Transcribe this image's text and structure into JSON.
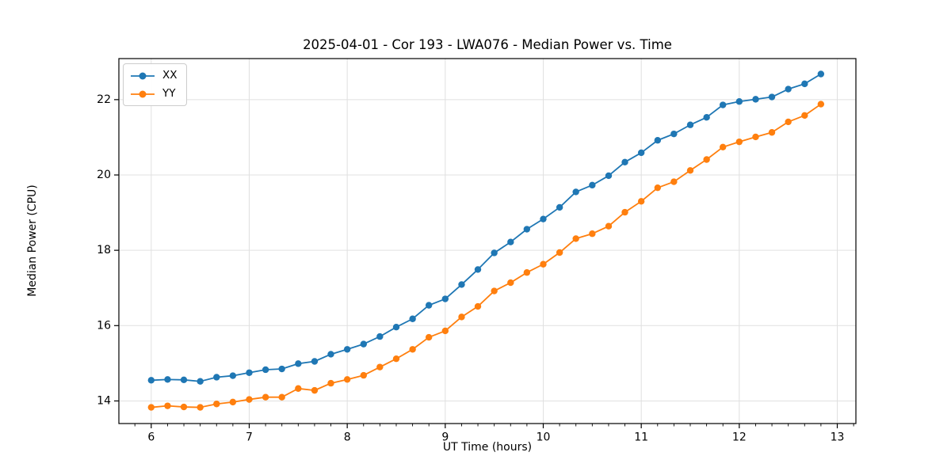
{
  "chart_data": {
    "type": "line",
    "title": "2025-04-01 - Cor 193 - LWA076 - Median Power vs. Time",
    "xlabel": "UT Time (hours)",
    "ylabel": "Median Power (CPU)",
    "xlim": [
      5.67,
      13.19
    ],
    "ylim": [
      13.4,
      23.09
    ],
    "x_ticks": [
      6,
      7,
      8,
      9,
      10,
      11,
      12,
      13
    ],
    "y_ticks": [
      14,
      16,
      18,
      20,
      22
    ],
    "x_minor_tick_step_hours": 0.1667,
    "grid": true,
    "grid_color": "#e0e0e0",
    "spine_color": "#000000",
    "legend_position": "upper-left",
    "x": [
      6.0,
      6.167,
      6.333,
      6.5,
      6.667,
      6.833,
      7.0,
      7.167,
      7.333,
      7.5,
      7.667,
      7.833,
      8.0,
      8.167,
      8.333,
      8.5,
      8.667,
      8.833,
      9.0,
      9.167,
      9.333,
      9.5,
      9.667,
      9.833,
      10.0,
      10.167,
      10.333,
      10.5,
      10.667,
      10.833,
      11.0,
      11.167,
      11.333,
      11.5,
      11.667,
      11.833,
      12.0,
      12.167,
      12.333,
      12.5,
      12.667,
      12.833
    ],
    "series": [
      {
        "name": "XX",
        "color": "#1f77b4",
        "values": [
          14.55,
          14.57,
          14.56,
          14.52,
          14.63,
          14.67,
          14.75,
          14.83,
          14.85,
          14.99,
          15.05,
          15.24,
          15.37,
          15.51,
          15.71,
          15.96,
          16.18,
          16.54,
          16.71,
          17.09,
          17.49,
          17.93,
          18.22,
          18.56,
          18.83,
          19.14,
          19.55,
          19.73,
          19.98,
          20.34,
          20.59,
          20.92,
          21.09,
          21.33,
          21.53,
          21.86,
          21.95,
          22.01,
          22.07,
          22.28,
          22.42,
          22.68
        ]
      },
      {
        "name": "YY",
        "color": "#ff7f0e",
        "values": [
          13.83,
          13.87,
          13.84,
          13.83,
          13.92,
          13.97,
          14.04,
          14.1,
          14.1,
          14.33,
          14.28,
          14.47,
          14.57,
          14.68,
          14.9,
          15.12,
          15.37,
          15.69,
          15.86,
          16.23,
          16.51,
          16.92,
          17.14,
          17.41,
          17.63,
          17.94,
          18.31,
          18.44,
          18.64,
          19.01,
          19.3,
          19.66,
          19.82,
          20.12,
          20.41,
          20.74,
          20.88,
          21.01,
          21.13,
          21.41,
          21.58,
          21.88
        ]
      }
    ]
  }
}
